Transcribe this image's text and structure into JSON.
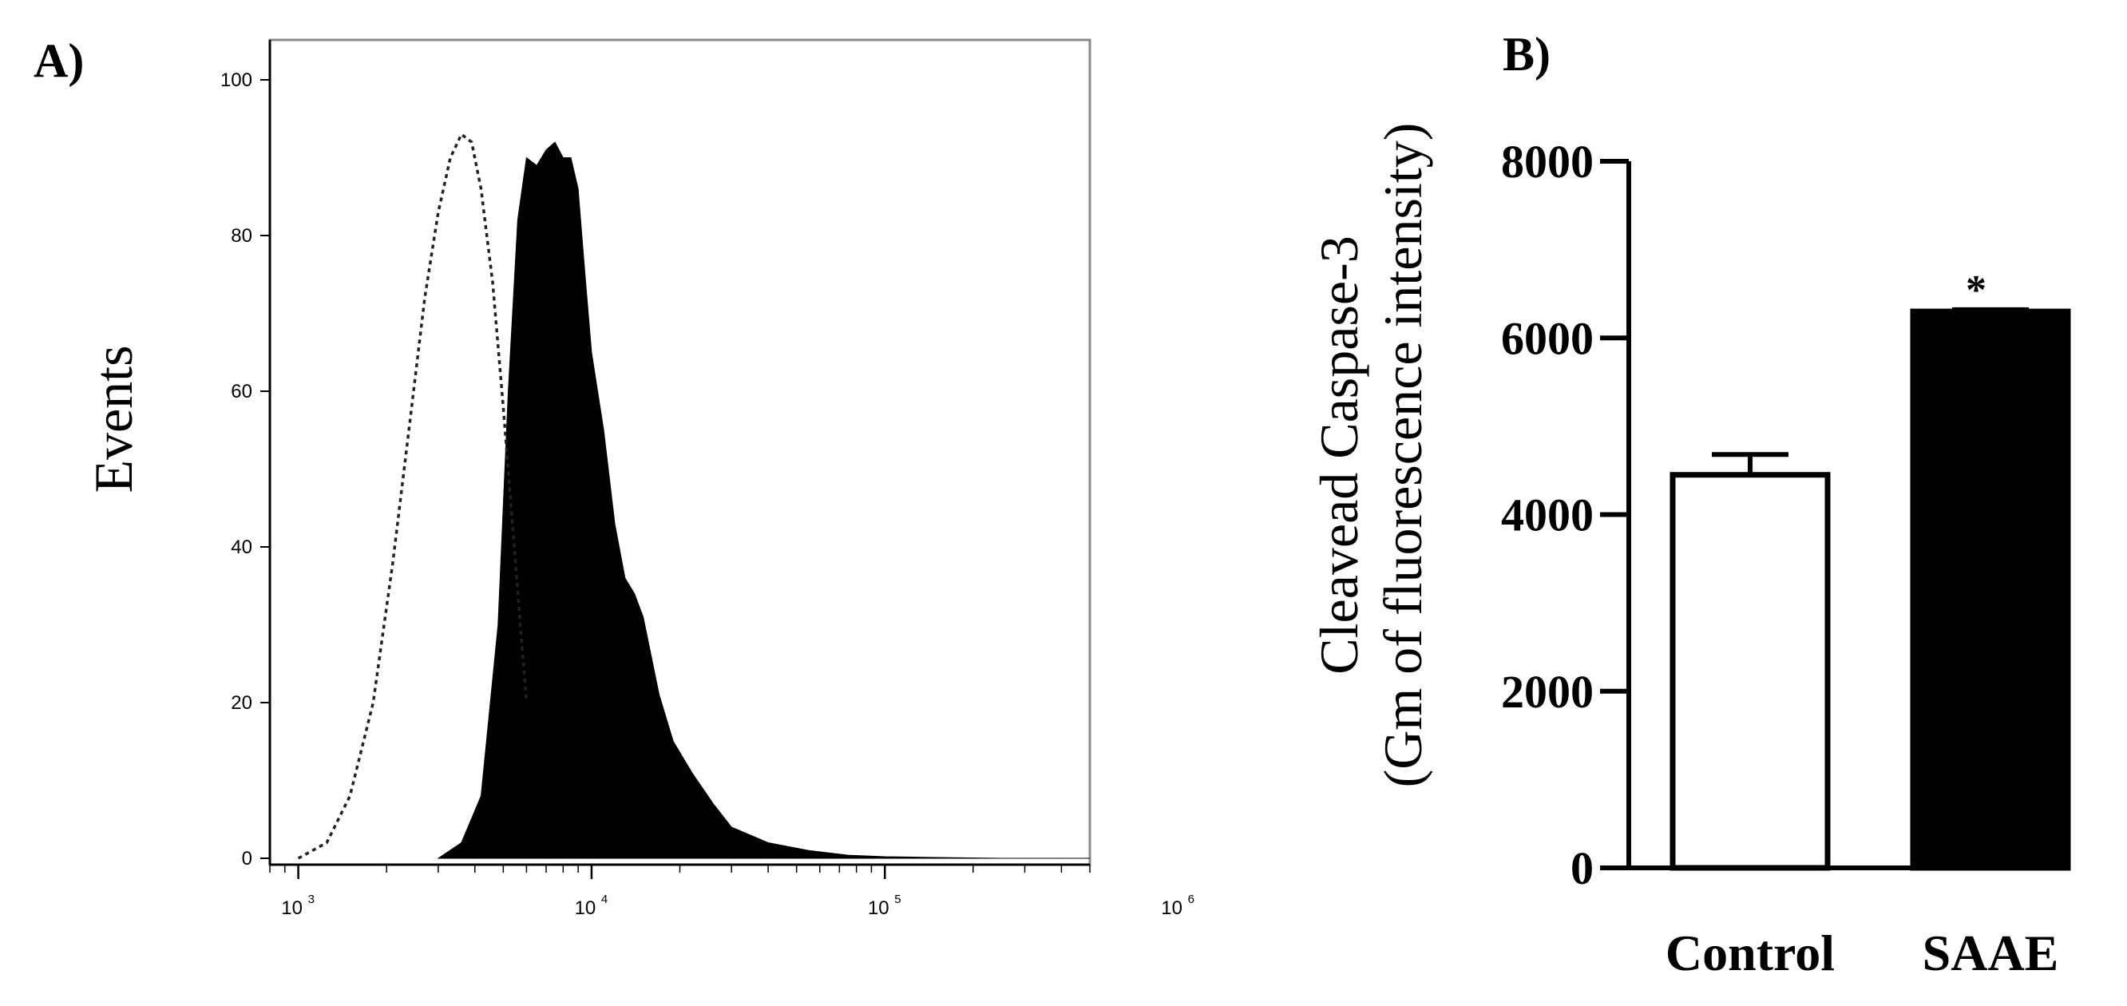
{
  "chart_data": [
    {
      "panel": "A)",
      "type": "area",
      "ylabel": "Events",
      "xscale": "log",
      "xlim": [
        800,
        500000
      ],
      "ylim": [
        0,
        100
      ],
      "yticks": [
        0,
        20,
        40,
        60,
        80,
        100
      ],
      "xticks": [
        {
          "value": 1000,
          "base": "10",
          "exp": "3"
        },
        {
          "value": 10000,
          "base": "10",
          "exp": "4"
        },
        {
          "value": 100000,
          "base": "10",
          "exp": "5"
        },
        {
          "value": 1000000,
          "base": "10",
          "exp": "6"
        }
      ],
      "series": [
        {
          "style": "dotted-outline",
          "x": [
            1000,
            1250,
            1500,
            1800,
            2100,
            2400,
            2700,
            3000,
            3300,
            3600,
            3900,
            4200,
            4600,
            5000,
            5500,
            6000
          ],
          "y": [
            0,
            2,
            8,
            20,
            38,
            56,
            72,
            83,
            90,
            93,
            92,
            86,
            74,
            58,
            38,
            20
          ]
        },
        {
          "style": "filled-black",
          "x": [
            3000,
            3600,
            4200,
            4800,
            5200,
            5600,
            6000,
            6500,
            7000,
            7500,
            8000,
            8500,
            9000,
            9500,
            10000,
            11000,
            12000,
            13000,
            14000,
            15000,
            17000,
            19000,
            22000,
            26000,
            30000,
            40000,
            55000,
            75000,
            100000,
            150000,
            250000,
            500000
          ],
          "y": [
            0,
            2,
            8,
            30,
            60,
            82,
            90,
            89,
            91,
            92,
            90,
            90,
            86,
            75,
            65,
            55,
            43,
            36,
            34,
            31,
            21,
            15,
            11,
            7,
            4,
            2,
            1,
            0.4,
            0.2,
            0.1,
            0,
            0
          ]
        }
      ]
    },
    {
      "panel": "B)",
      "type": "bar",
      "ylabel_line1": "Cleavead Caspase-3",
      "ylabel_line2": "(Gm of fluorescence intensity)",
      "ylim": [
        0,
        8000
      ],
      "yticks": [
        0,
        2000,
        4000,
        6000,
        8000
      ],
      "categories": [
        "Control",
        "SAAE"
      ],
      "values": [
        4450,
        6300
      ],
      "errors": [
        230,
        20
      ],
      "bar_colors": [
        "#ffffff",
        "#000000"
      ],
      "annotations": [
        "",
        "*"
      ]
    }
  ]
}
